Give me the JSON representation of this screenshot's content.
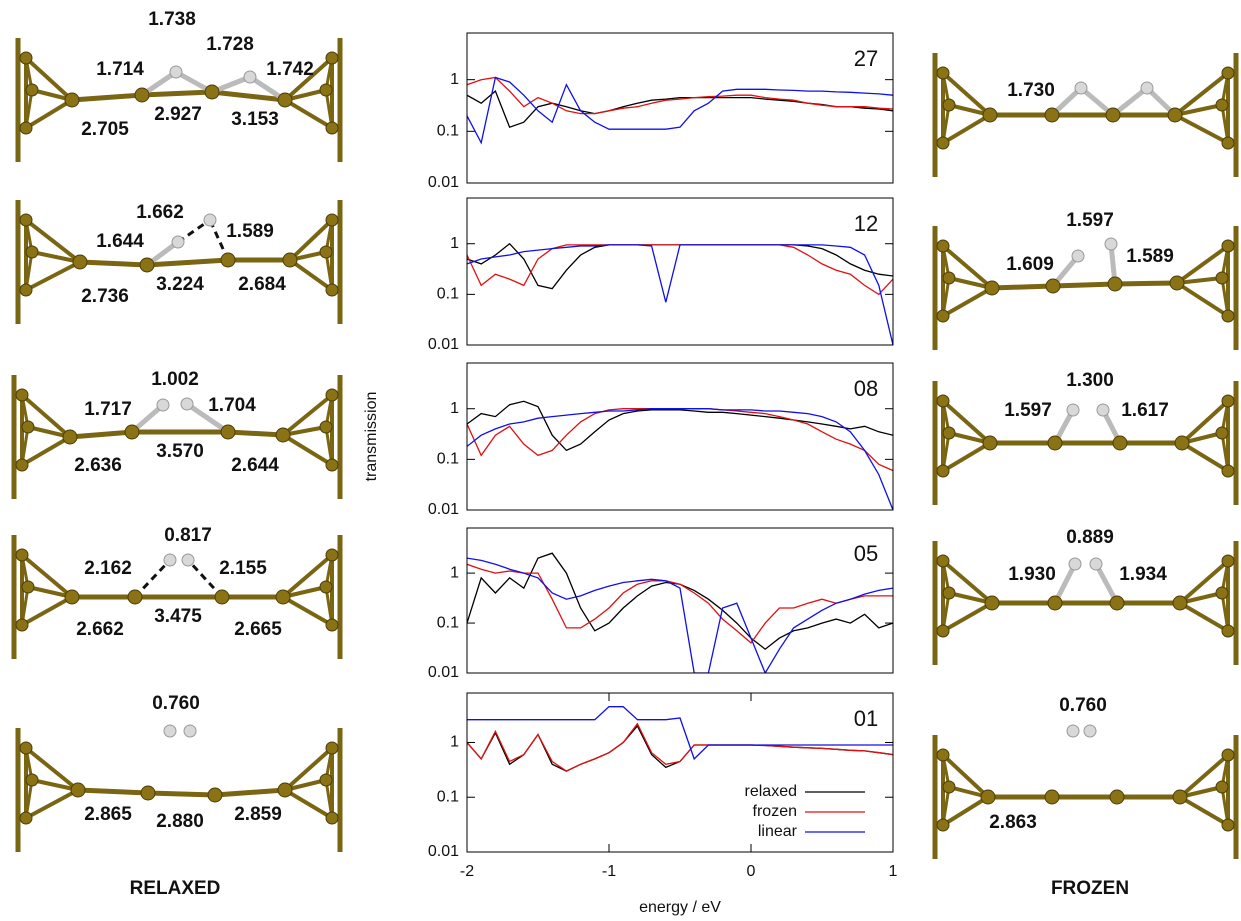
{
  "chart_data": [
    {
      "type": "line",
      "label": "27",
      "x": [
        -2,
        -1.9,
        -1.8,
        -1.7,
        -1.6,
        -1.5,
        -1.4,
        -1.3,
        -1.2,
        -1.1,
        -1,
        -0.9,
        -0.8,
        -0.7,
        -0.6,
        -0.5,
        -0.4,
        -0.3,
        -0.2,
        -0.1,
        0,
        0.1,
        0.2,
        0.3,
        0.4,
        0.5,
        0.6,
        0.7,
        0.8,
        0.9,
        1
      ],
      "xlim": [
        -2,
        1
      ],
      "ylim": [
        0.01,
        8
      ],
      "yticks": [
        0.01,
        0.1,
        1
      ],
      "log_y": true,
      "series": [
        {
          "color": "#000000",
          "values": [
            0.5,
            0.35,
            0.6,
            0.12,
            0.15,
            0.3,
            0.35,
            0.3,
            0.25,
            0.22,
            0.25,
            0.3,
            0.35,
            0.4,
            0.42,
            0.45,
            0.45,
            0.45,
            0.45,
            0.45,
            0.45,
            0.42,
            0.4,
            0.38,
            0.35,
            0.33,
            0.3,
            0.3,
            0.28,
            0.27,
            0.25
          ]
        },
        {
          "color": "#e01010",
          "values": [
            0.8,
            1.0,
            1.1,
            0.6,
            0.3,
            0.45,
            0.35,
            0.25,
            0.22,
            0.22,
            0.25,
            0.28,
            0.3,
            0.35,
            0.4,
            0.42,
            0.45,
            0.47,
            0.48,
            0.5,
            0.5,
            0.45,
            0.42,
            0.4,
            0.35,
            0.32,
            0.3,
            0.3,
            0.3,
            0.28,
            0.27
          ]
        },
        {
          "color": "#1010e8",
          "values": [
            0.2,
            0.06,
            1.1,
            0.9,
            0.5,
            0.25,
            0.15,
            0.8,
            0.25,
            0.15,
            0.11,
            0.11,
            0.11,
            0.11,
            0.11,
            0.12,
            0.25,
            0.35,
            0.6,
            0.65,
            0.65,
            0.65,
            0.63,
            0.62,
            0.6,
            0.6,
            0.58,
            0.57,
            0.55,
            0.53,
            0.5
          ]
        }
      ]
    },
    {
      "type": "line",
      "label": "12",
      "x": [
        -2,
        -1.9,
        -1.8,
        -1.7,
        -1.6,
        -1.5,
        -1.4,
        -1.3,
        -1.2,
        -1.1,
        -1,
        -0.9,
        -0.8,
        -0.7,
        -0.6,
        -0.5,
        -0.4,
        -0.3,
        -0.2,
        -0.1,
        0,
        0.1,
        0.2,
        0.3,
        0.4,
        0.5,
        0.6,
        0.7,
        0.8,
        0.9,
        1
      ],
      "xlim": [
        -2,
        1
      ],
      "ylim": [
        0.01,
        8
      ],
      "yticks": [
        0.01,
        0.1,
        1
      ],
      "log_y": true,
      "series": [
        {
          "color": "#000000",
          "values": [
            0.5,
            0.4,
            0.6,
            1.0,
            0.5,
            0.15,
            0.13,
            0.3,
            0.6,
            0.85,
            0.95,
            0.95,
            0.95,
            0.95,
            0.95,
            0.95,
            0.95,
            0.95,
            0.95,
            0.95,
            0.95,
            0.95,
            0.95,
            0.95,
            0.9,
            0.8,
            0.6,
            0.4,
            0.3,
            0.25,
            0.23
          ]
        },
        {
          "color": "#e01010",
          "values": [
            0.6,
            0.15,
            0.25,
            0.2,
            0.15,
            0.5,
            0.8,
            0.95,
            0.95,
            0.95,
            0.95,
            0.95,
            0.95,
            0.95,
            0.95,
            0.95,
            0.95,
            0.95,
            0.95,
            0.95,
            0.95,
            0.95,
            0.95,
            0.85,
            0.6,
            0.4,
            0.3,
            0.25,
            0.15,
            0.1,
            0.2
          ]
        },
        {
          "color": "#1010e8",
          "values": [
            0.4,
            0.5,
            0.55,
            0.6,
            0.7,
            0.75,
            0.8,
            0.85,
            0.9,
            0.9,
            0.95,
            0.95,
            0.95,
            0.9,
            0.07,
            0.95,
            0.95,
            0.95,
            0.95,
            0.95,
            0.95,
            0.95,
            0.95,
            0.95,
            0.95,
            0.95,
            0.9,
            0.85,
            0.6,
            0.15,
            0.01
          ]
        }
      ]
    },
    {
      "type": "line",
      "label": "08",
      "ylabel": "transmission",
      "x": [
        -2,
        -1.9,
        -1.8,
        -1.7,
        -1.6,
        -1.5,
        -1.4,
        -1.3,
        -1.2,
        -1.1,
        -1,
        -0.9,
        -0.8,
        -0.7,
        -0.6,
        -0.5,
        -0.4,
        -0.3,
        -0.2,
        -0.1,
        0,
        0.1,
        0.2,
        0.3,
        0.4,
        0.5,
        0.6,
        0.7,
        0.8,
        0.9,
        1
      ],
      "xlim": [
        -2,
        1
      ],
      "ylim": [
        0.01,
        8
      ],
      "yticks": [
        0.01,
        0.1,
        1
      ],
      "log_y": true,
      "series": [
        {
          "color": "#000000",
          "values": [
            0.5,
            0.8,
            0.7,
            1.2,
            1.4,
            1.1,
            0.3,
            0.15,
            0.2,
            0.35,
            0.6,
            0.8,
            0.9,
            0.95,
            0.95,
            0.95,
            0.9,
            0.85,
            0.85,
            0.8,
            0.75,
            0.7,
            0.65,
            0.6,
            0.55,
            0.5,
            0.45,
            0.4,
            0.45,
            0.35,
            0.3
          ]
        },
        {
          "color": "#e01010",
          "values": [
            0.5,
            0.12,
            0.3,
            0.45,
            0.2,
            0.12,
            0.15,
            0.3,
            0.55,
            0.8,
            0.95,
            1.0,
            1.0,
            1.0,
            1.0,
            1.0,
            1.0,
            1.0,
            0.95,
            0.9,
            0.85,
            0.8,
            0.7,
            0.6,
            0.5,
            0.35,
            0.25,
            0.2,
            0.15,
            0.08,
            0.06
          ]
        },
        {
          "color": "#1010e8",
          "values": [
            0.18,
            0.3,
            0.4,
            0.5,
            0.55,
            0.65,
            0.7,
            0.75,
            0.8,
            0.85,
            0.9,
            0.9,
            0.95,
            1.0,
            1.0,
            1.0,
            1.0,
            1.0,
            0.95,
            0.95,
            0.95,
            0.9,
            0.9,
            0.85,
            0.8,
            0.7,
            0.55,
            0.35,
            0.15,
            0.05,
            0.01
          ]
        }
      ]
    },
    {
      "type": "line",
      "label": "05",
      "x": [
        -2,
        -1.9,
        -1.8,
        -1.7,
        -1.6,
        -1.5,
        -1.4,
        -1.3,
        -1.2,
        -1.1,
        -1,
        -0.9,
        -0.8,
        -0.7,
        -0.6,
        -0.5,
        -0.4,
        -0.3,
        -0.2,
        -0.1,
        0,
        0.1,
        0.2,
        0.3,
        0.4,
        0.5,
        0.6,
        0.7,
        0.8,
        0.9,
        1
      ],
      "xlim": [
        -2,
        1
      ],
      "ylim": [
        0.01,
        8
      ],
      "yticks": [
        0.01,
        0.1,
        1
      ],
      "log_y": true,
      "series": [
        {
          "color": "#000000",
          "values": [
            0.1,
            0.8,
            0.4,
            0.8,
            0.5,
            2.0,
            2.5,
            1.0,
            0.2,
            0.07,
            0.1,
            0.2,
            0.35,
            0.55,
            0.65,
            0.6,
            0.45,
            0.3,
            0.18,
            0.1,
            0.05,
            0.03,
            0.05,
            0.07,
            0.08,
            0.1,
            0.12,
            0.1,
            0.15,
            0.08,
            0.1
          ]
        },
        {
          "color": "#e01010",
          "values": [
            1.5,
            1.2,
            1.0,
            1.1,
            1.0,
            1.0,
            0.3,
            0.08,
            0.08,
            0.12,
            0.2,
            0.4,
            0.6,
            0.7,
            0.7,
            0.6,
            0.4,
            0.25,
            0.12,
            0.07,
            0.04,
            0.1,
            0.2,
            0.2,
            0.25,
            0.3,
            0.25,
            0.3,
            0.35,
            0.35,
            0.35
          ]
        },
        {
          "color": "#1010e8",
          "values": [
            2.0,
            1.8,
            1.5,
            1.2,
            1.0,
            0.8,
            0.4,
            0.3,
            0.35,
            0.45,
            0.55,
            0.65,
            0.7,
            0.75,
            0.7,
            0.5,
            0.01,
            0.01,
            0.2,
            0.25,
            0.05,
            0.01,
            0.03,
            0.08,
            0.12,
            0.18,
            0.25,
            0.3,
            0.38,
            0.45,
            0.5
          ]
        }
      ]
    },
    {
      "type": "line",
      "label": "01",
      "xlabel": "energy / eV",
      "legend": "lower right",
      "x": [
        -2,
        -1.9,
        -1.8,
        -1.7,
        -1.6,
        -1.5,
        -1.4,
        -1.3,
        -1.2,
        -1.1,
        -1,
        -0.9,
        -0.8,
        -0.7,
        -0.6,
        -0.5,
        -0.4,
        -0.3,
        -0.2,
        -0.1,
        0,
        0.1,
        0.2,
        0.3,
        0.4,
        0.5,
        0.6,
        0.7,
        0.8,
        0.9,
        1
      ],
      "xlim": [
        -2,
        1
      ],
      "xticks": [
        -2,
        -1,
        0,
        1
      ],
      "ylim": [
        0.01,
        8
      ],
      "yticks": [
        0.01,
        0.1,
        1
      ],
      "log_y": true,
      "series": [
        {
          "name": "relaxed",
          "color": "#000000",
          "values": [
            1.0,
            0.5,
            1.5,
            0.4,
            0.6,
            1.4,
            0.4,
            0.3,
            0.4,
            0.5,
            0.65,
            1.0,
            2.0,
            0.6,
            0.35,
            0.45,
            0.9,
            0.9,
            0.9,
            0.9,
            0.9,
            0.88,
            0.85,
            0.82,
            0.8,
            0.78,
            0.75,
            0.72,
            0.7,
            0.65,
            0.6
          ]
        },
        {
          "name": "frozen",
          "color": "#e01010",
          "values": [
            1.0,
            0.5,
            1.6,
            0.45,
            0.6,
            1.4,
            0.45,
            0.3,
            0.4,
            0.5,
            0.65,
            1.0,
            2.2,
            0.65,
            0.4,
            0.45,
            0.9,
            0.9,
            0.9,
            0.9,
            0.9,
            0.88,
            0.85,
            0.82,
            0.8,
            0.78,
            0.75,
            0.72,
            0.7,
            0.65,
            0.6
          ]
        },
        {
          "name": "linear",
          "color": "#1010e8",
          "values": [
            2.6,
            2.6,
            2.6,
            2.6,
            2.6,
            2.6,
            2.6,
            2.6,
            2.6,
            2.6,
            4.5,
            4.5,
            2.6,
            2.6,
            2.6,
            2.8,
            0.5,
            0.9,
            0.9,
            0.9,
            0.9,
            0.9,
            0.9,
            0.9,
            0.9,
            0.9,
            0.9,
            0.9,
            0.9,
            0.9,
            0.9
          ]
        }
      ]
    }
  ],
  "relaxed": {
    "title": "RELAXED",
    "panels": [
      [
        "1.738",
        "1.728",
        "1.714",
        "1.742",
        "2.705",
        "2.927",
        "3.153"
      ],
      [
        "1.662",
        "1.589",
        "1.644",
        "2.736",
        "3.224",
        "2.684"
      ],
      [
        "1.002",
        "1.717",
        "1.704",
        "2.636",
        "3.570",
        "2.644"
      ],
      [
        "0.817",
        "2.162",
        "2.155",
        "2.662",
        "3.475",
        "2.665"
      ],
      [
        "0.760",
        "2.865",
        "2.880",
        "2.859"
      ]
    ]
  },
  "frozen": {
    "title": "FROZEN",
    "panels": [
      [
        "1.730"
      ],
      [
        "1.597",
        "1.609",
        "1.589"
      ],
      [
        "1.300",
        "1.597",
        "1.617"
      ],
      [
        "0.889",
        "1.930",
        "1.934"
      ],
      [
        "0.760",
        "2.863"
      ]
    ]
  }
}
